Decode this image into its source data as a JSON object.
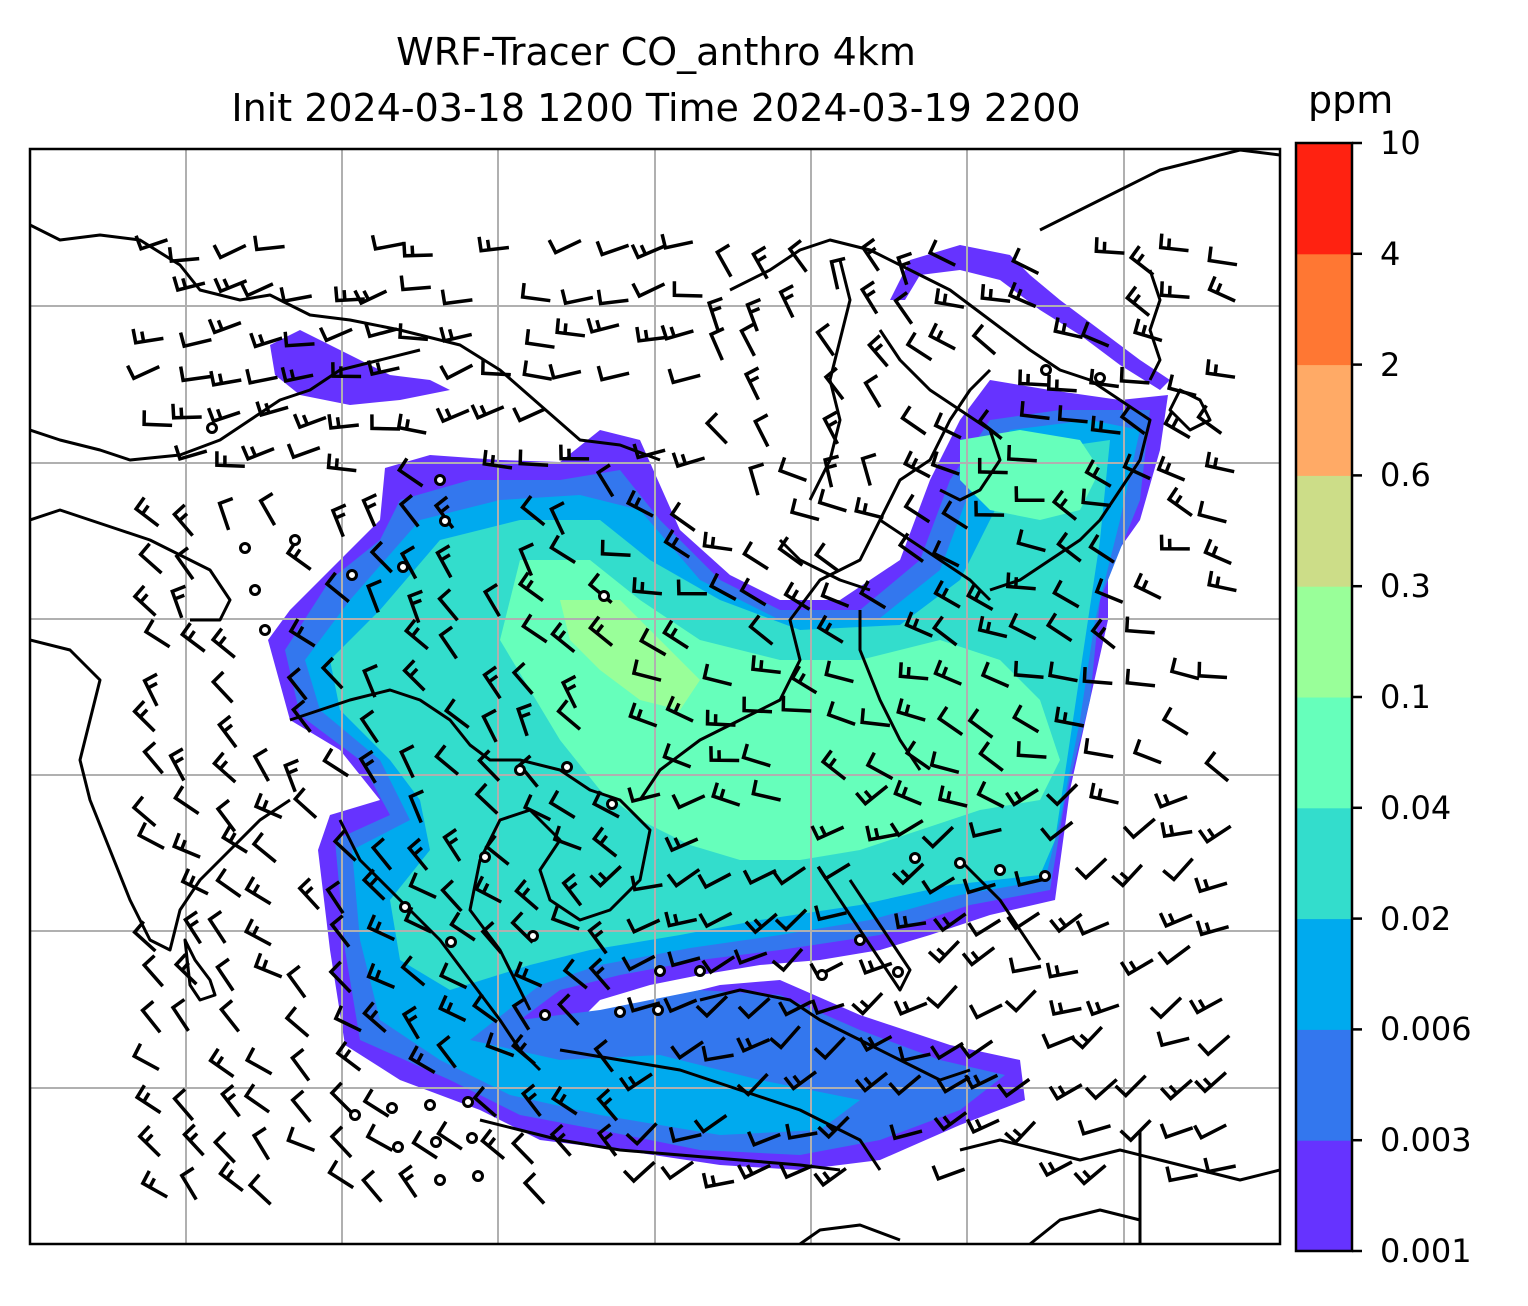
{
  "title_line1": "WRF-Tracer CO_anthro 4km",
  "title_line2": "Init 2024-03-18 1200 Time 2024-03-19 2200",
  "colorbar": {
    "label": "ppm",
    "levels": [
      "0.001",
      "0.003",
      "0.006",
      "0.02",
      "0.04",
      "0.1",
      "0.3",
      "0.6",
      "2",
      "4",
      "10"
    ],
    "colors": [
      "#6633ff",
      "#3377ee",
      "#00aaee",
      "#33ddcc",
      "#66ffbb",
      "#99ff99",
      "#ccdd88",
      "#ffaa66",
      "#ff7733",
      "#ff2211"
    ]
  },
  "map": {
    "gridlines": true,
    "overlay": "wind barbs and calm-wind circles",
    "coastline_color": "#000000"
  }
}
